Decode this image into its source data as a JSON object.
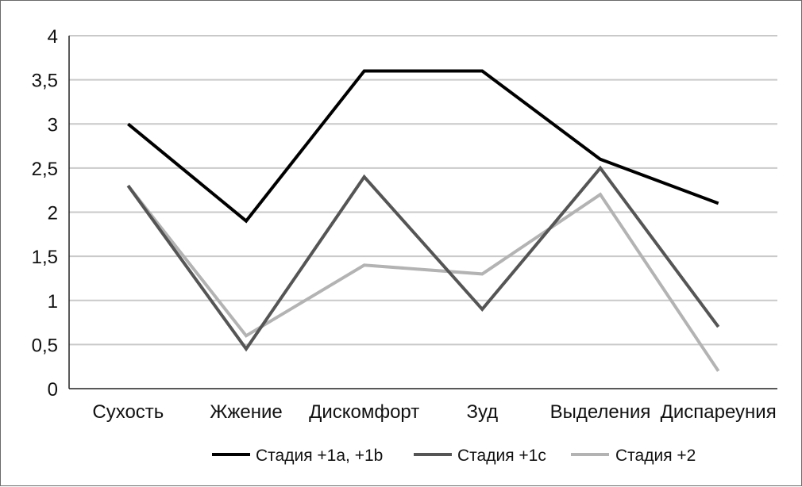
{
  "chart_data": {
    "type": "line",
    "title": "",
    "xlabel": "",
    "ylabel": "",
    "categories": [
      "Сухость",
      "Жжение",
      "Дискомфорт",
      "Зуд",
      "Выделения",
      "Диспареуния"
    ],
    "ylim": [
      0,
      4
    ],
    "yticks": [
      0,
      0.5,
      1,
      1.5,
      2,
      2.5,
      3,
      3.5,
      4
    ],
    "ytick_labels": [
      "0",
      "0,5",
      "1",
      "1,5",
      "2",
      "2,5",
      "3",
      "3,5",
      "4"
    ],
    "grid": true,
    "legend_position": "bottom",
    "series": [
      {
        "name": "Стадия +1a, +1b",
        "color": "#000000",
        "values": [
          3.0,
          1.9,
          3.6,
          3.6,
          2.6,
          2.1
        ]
      },
      {
        "name": "Стадия +1c",
        "color": "#555555",
        "values": [
          2.3,
          0.45,
          2.4,
          0.9,
          2.5,
          0.7
        ]
      },
      {
        "name": "Стадия +2",
        "color": "#b3b3b3",
        "values": [
          2.3,
          0.6,
          1.4,
          1.3,
          2.2,
          0.2
        ]
      }
    ]
  }
}
